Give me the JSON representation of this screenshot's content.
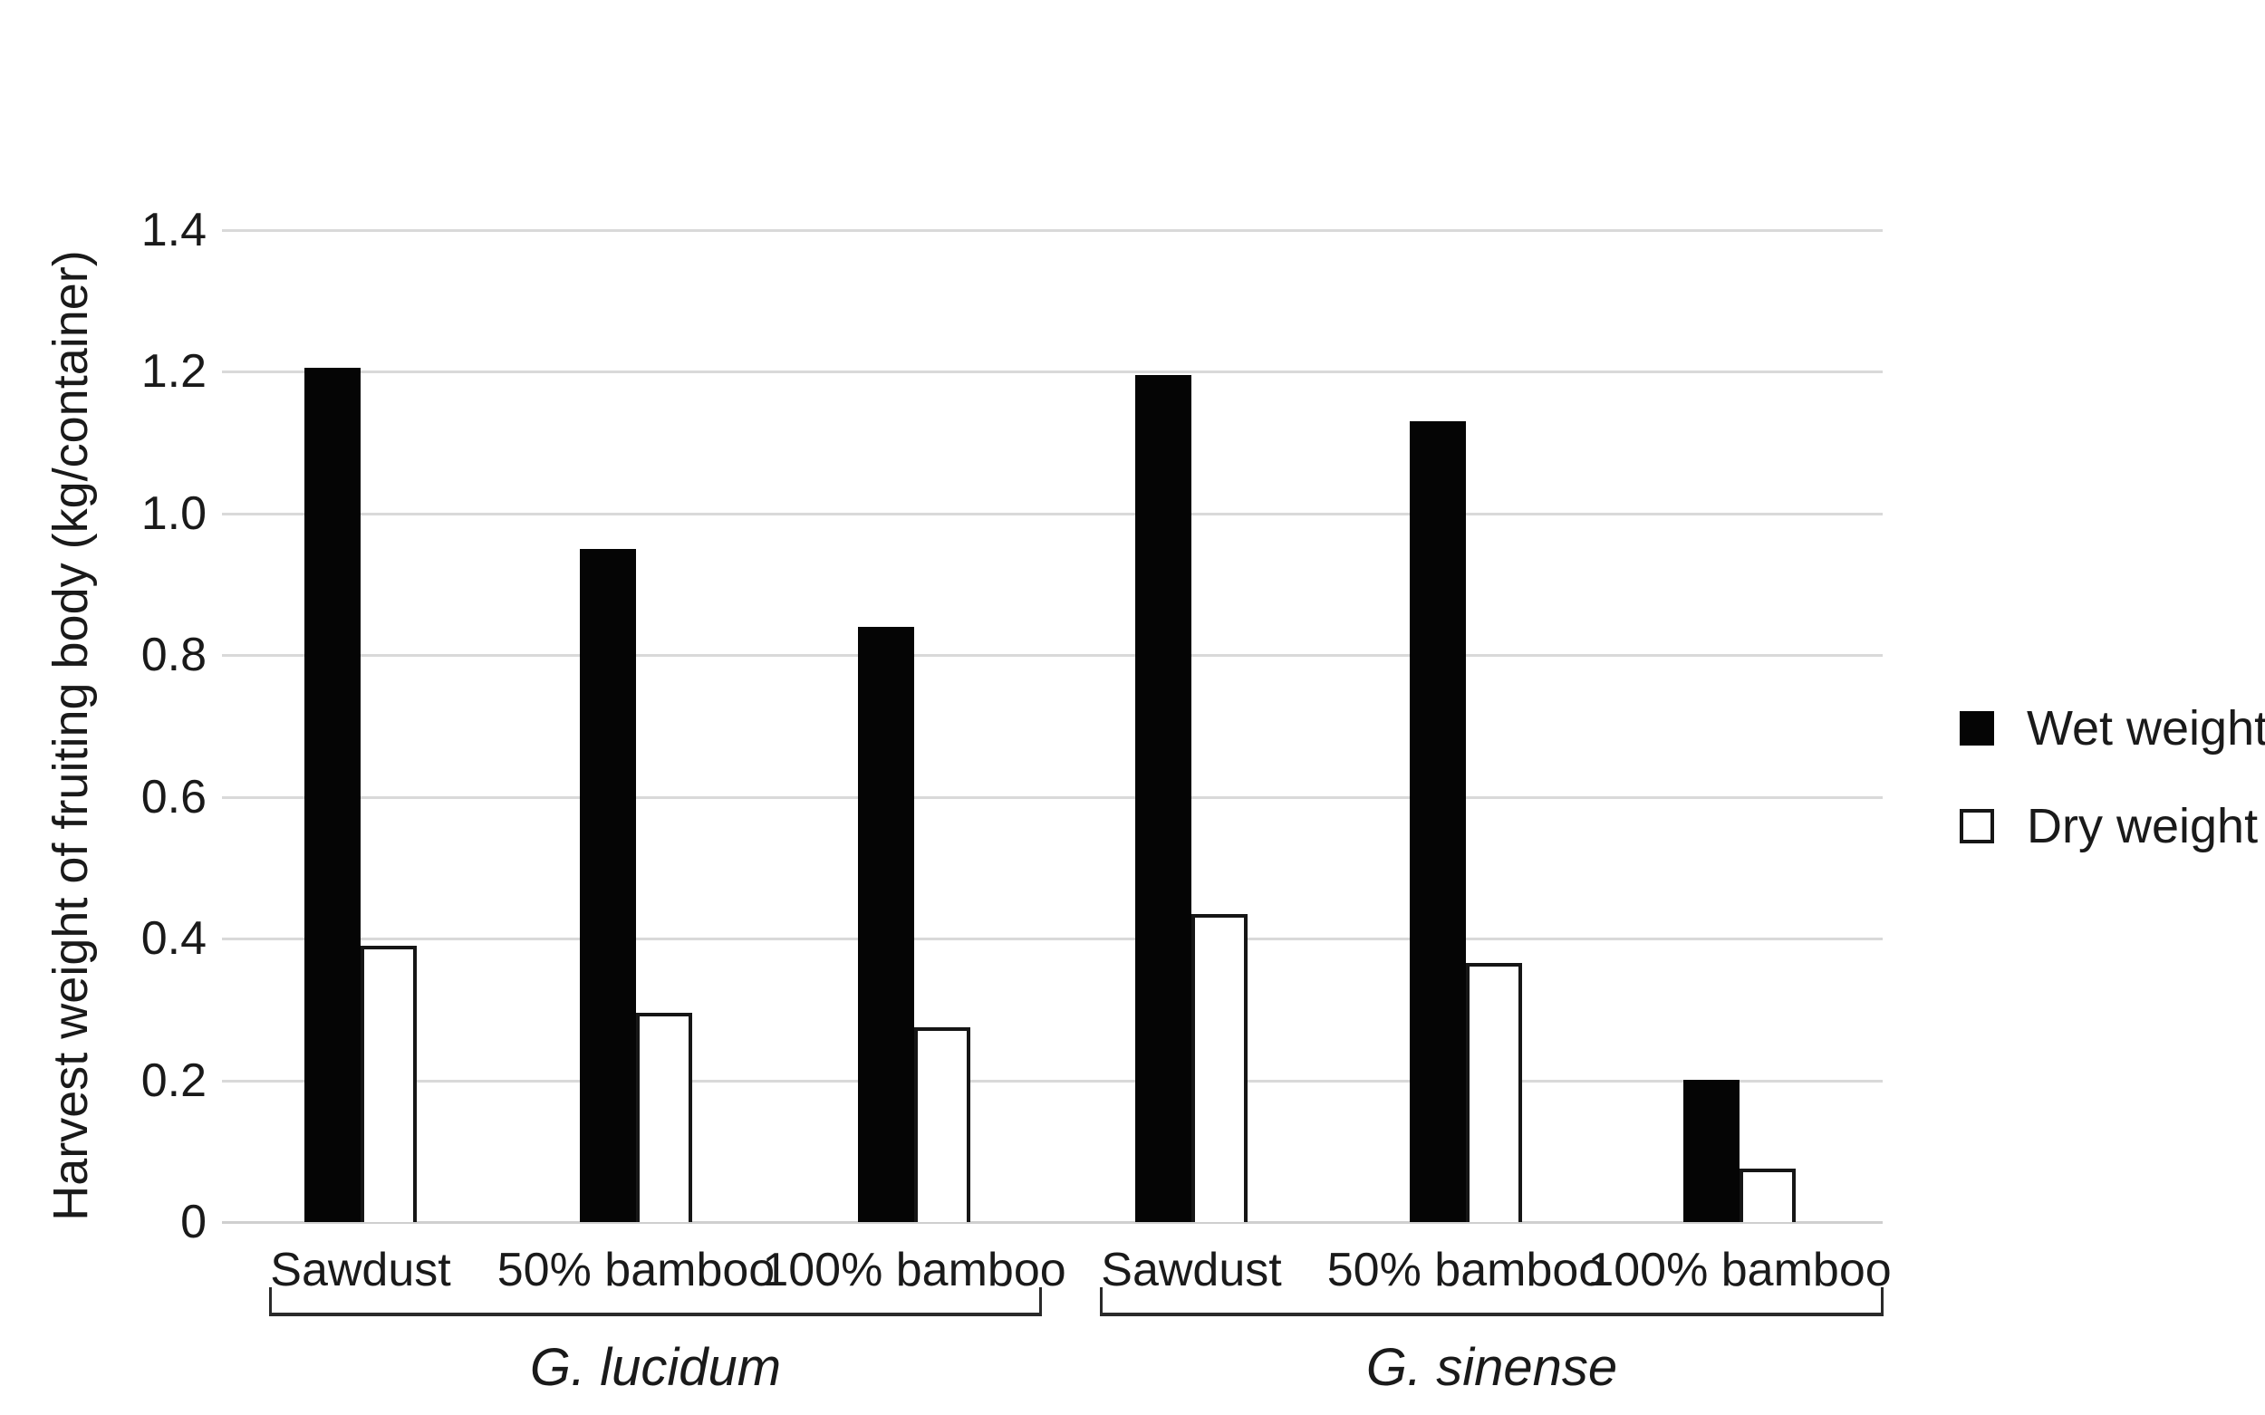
{
  "figure": {
    "background": "#ffffff",
    "text_color": "#1a1a1a"
  },
  "chart_data": {
    "type": "bar",
    "title": "",
    "xlabel": "",
    "ylabel": "Harvest weight of fruiting body (kg/container)",
    "ylim": [
      0,
      1.4
    ],
    "grid": "horizontal",
    "grid_color": "#d9d9d9",
    "legend_position": "right",
    "yticks": [
      {
        "value": 0,
        "label": "0"
      },
      {
        "value": 0.2,
        "label": "0.2"
      },
      {
        "value": 0.4,
        "label": "0.4"
      },
      {
        "value": 0.6,
        "label": "0.6"
      },
      {
        "value": 0.8,
        "label": "0.8"
      },
      {
        "value": 1.0,
        "label": "1.0"
      },
      {
        "value": 1.2,
        "label": "1.2"
      },
      {
        "value": 1.4,
        "label": "1.4"
      }
    ],
    "groups": [
      {
        "label": "G. lucidum",
        "categories": [
          "Sawdust",
          "50% bamboo",
          "100% bamboo"
        ]
      },
      {
        "label": "G. sinense",
        "categories": [
          "Sawdust",
          "50% bamboo",
          "100% bamboo"
        ]
      }
    ],
    "series": [
      {
        "name": "Wet weight",
        "style": "filled",
        "color": "#000000",
        "values": [
          [
            1.205,
            0.95,
            0.84
          ],
          [
            1.195,
            1.13,
            0.2
          ]
        ]
      },
      {
        "name": "Dry weight",
        "style": "outlined",
        "color": "#ffffff",
        "border_color": "#000000",
        "values": [
          [
            0.39,
            0.295,
            0.275
          ],
          [
            0.435,
            0.365,
            0.075
          ]
        ]
      }
    ]
  }
}
